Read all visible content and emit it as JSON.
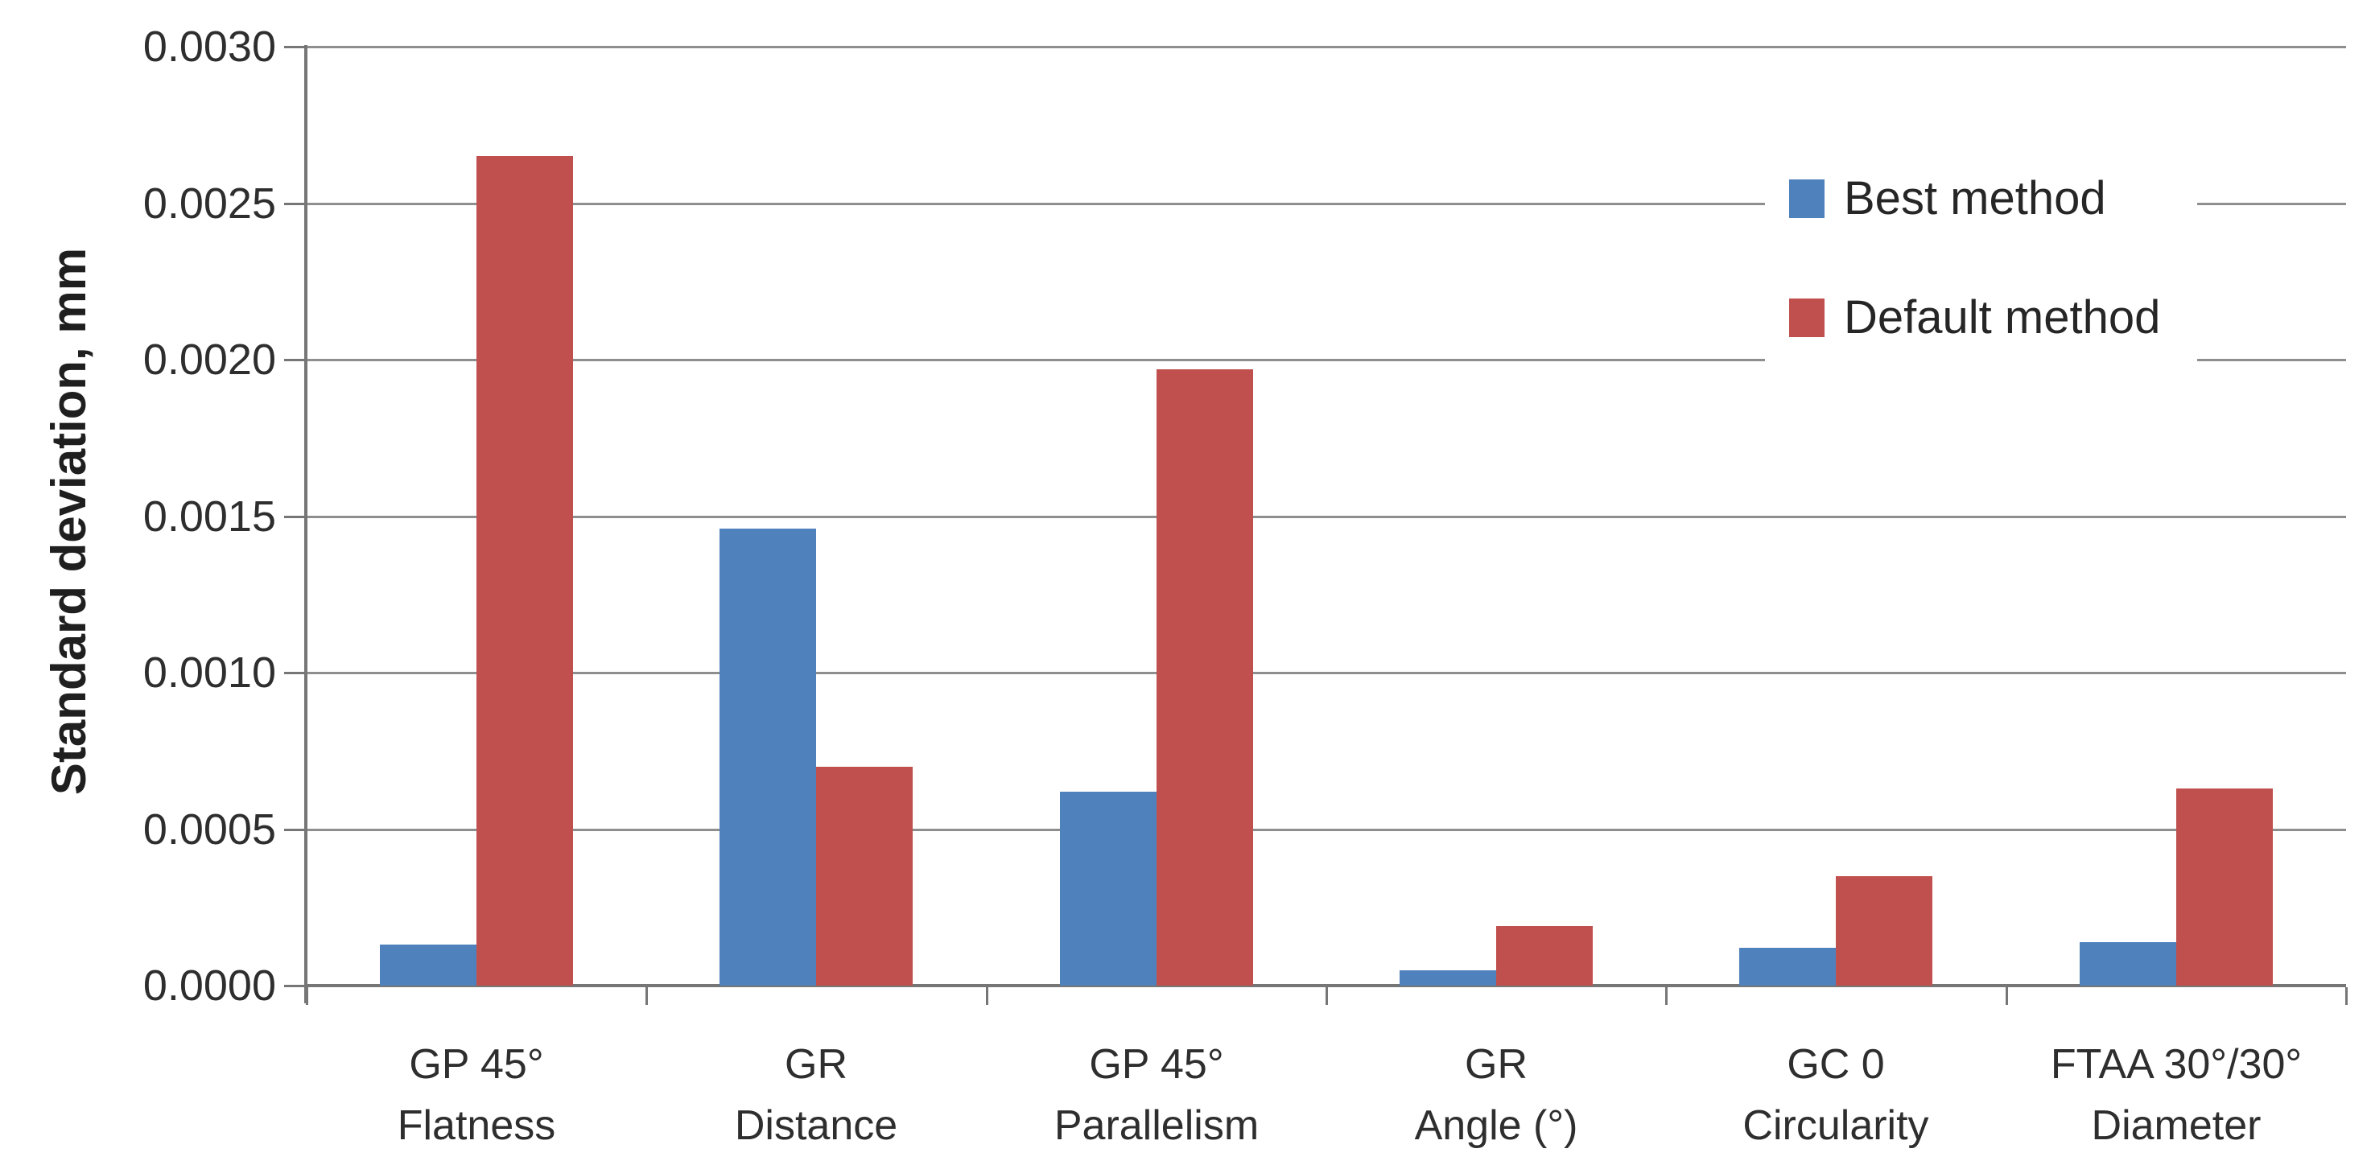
{
  "chart_data": {
    "type": "bar",
    "title": "",
    "xlabel": "",
    "ylabel": "Standard deviation, mm",
    "ylim": [
      0,
      0.003
    ],
    "ytick_step": 0.0005,
    "ytick_labels": [
      "0.0000",
      "0.0005",
      "0.0010",
      "0.0015",
      "0.0020",
      "0.0025",
      "0.0030"
    ],
    "grid": "horizontal",
    "legend_position": "upper-right",
    "categories": [
      "GP 45° Flatness",
      "GR Distance",
      "GP 45° Parallelism",
      "GR Angle (°)",
      "GC 0 Circularity",
      "FTAA 30°/30° Diameter"
    ],
    "category_lines": [
      [
        "GP 45°",
        "Flatness"
      ],
      [
        "GR",
        "Distance"
      ],
      [
        "GP 45°",
        "Parallelism"
      ],
      [
        "GR",
        "Angle (°)"
      ],
      [
        "GC 0",
        "Circularity"
      ],
      [
        "FTAA 30°/30°",
        "Diameter"
      ]
    ],
    "series": [
      {
        "name": "Best method",
        "color": "#4F81BD",
        "values": [
          0.00013,
          0.00146,
          0.00062,
          5e-05,
          0.00012,
          0.00014
        ]
      },
      {
        "name": "Default method",
        "color": "#C0504D",
        "values": [
          0.00265,
          0.0007,
          0.00197,
          0.00019,
          0.00035,
          0.00063
        ]
      }
    ]
  },
  "colors": {
    "best_method": "#4F81BD",
    "default_method": "#C0504D",
    "gridline": "#8e8e8e",
    "axis": "#767676",
    "text": "#2e2e2e"
  }
}
